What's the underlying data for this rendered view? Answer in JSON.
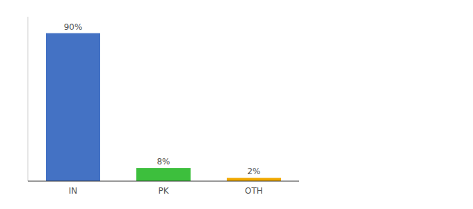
{
  "chart_data": {
    "type": "bar",
    "categories": [
      "IN",
      "PK",
      "OTH"
    ],
    "values": [
      90,
      8,
      2
    ],
    "value_labels": [
      "90%",
      "8%",
      "2%"
    ],
    "colors": [
      "#4472c4",
      "#3dbf3d",
      "#f0a800"
    ],
    "ylim": [
      0,
      100
    ],
    "data_labels": true,
    "tick_labels": "x"
  }
}
